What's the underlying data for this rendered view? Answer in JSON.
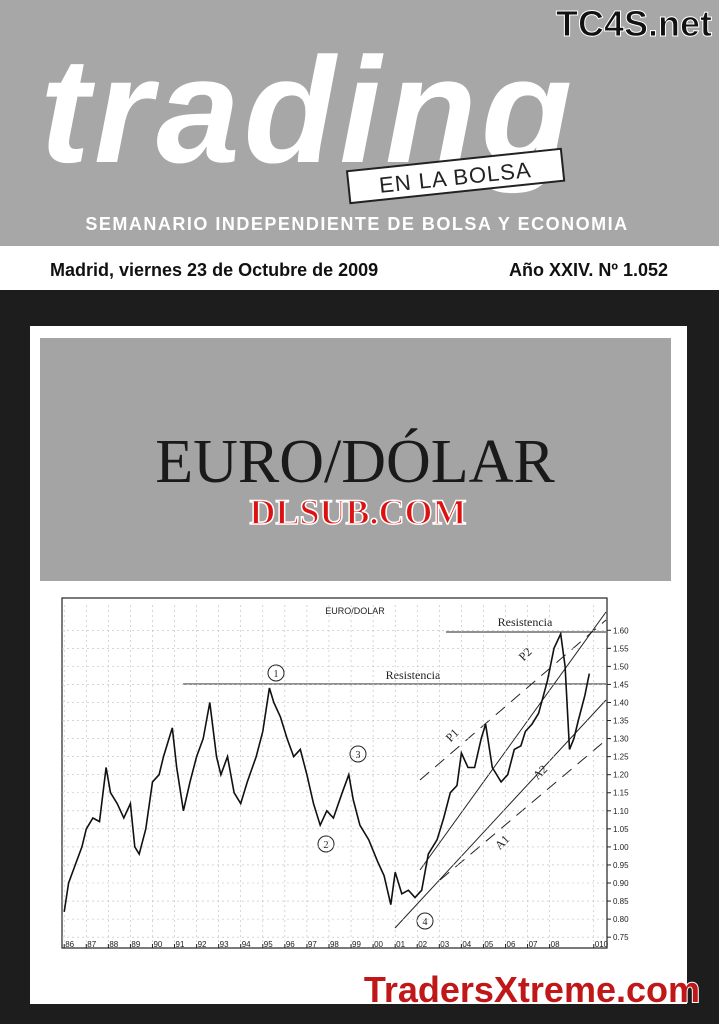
{
  "header": {
    "watermark": "TC4S.net",
    "title": "trading",
    "subtitle": "EN LA BOLSA",
    "tagline": "SEMANARIO INDEPENDIENTE DE BOLSA Y ECONOMIA"
  },
  "dateline": {
    "date": "Madrid, viernes 23 de Octubre de 2009",
    "issue": "Año XXIV. Nº 1.052"
  },
  "headline": {
    "title": "EURO/DÓLAR",
    "watermark": "DLSUB.COM"
  },
  "chart_data": {
    "type": "line",
    "title": "EURO/DOLAR",
    "color": "#111111",
    "x": [
      1986.0,
      1986.2,
      1986.5,
      1986.8,
      1987.0,
      1987.3,
      1987.6,
      1987.9,
      1988.1,
      1988.4,
      1988.7,
      1989.0,
      1989.2,
      1989.4,
      1989.7,
      1990.0,
      1990.3,
      1990.5,
      1990.9,
      1991.1,
      1991.4,
      1991.7,
      1992.0,
      1992.3,
      1992.6,
      1992.9,
      1993.1,
      1993.4,
      1993.7,
      1994.0,
      1994.3,
      1994.7,
      1995.0,
      1995.3,
      1995.5,
      1995.8,
      1996.1,
      1996.4,
      1996.7,
      1997.0,
      1997.3,
      1997.6,
      1997.9,
      1998.2,
      1998.6,
      1998.9,
      1999.1,
      1999.4,
      1999.8,
      2000.2,
      2000.5,
      2000.8,
      2001.0,
      2001.3,
      2001.6,
      2001.9,
      2002.2,
      2002.5,
      2002.9,
      2003.2,
      2003.5,
      2003.8,
      2004.0,
      2004.3,
      2004.6,
      2004.9,
      2005.1,
      2005.4,
      2005.8,
      2006.1,
      2006.4,
      2006.7,
      2006.9,
      2007.2,
      2007.5,
      2007.9,
      2008.2,
      2008.5,
      2008.7,
      2008.9,
      2009.1,
      2009.3,
      2009.6,
      2009.8
    ],
    "values": [
      0.82,
      0.9,
      0.95,
      1.0,
      1.05,
      1.08,
      1.07,
      1.22,
      1.15,
      1.12,
      1.08,
      1.12,
      1.0,
      0.98,
      1.05,
      1.18,
      1.2,
      1.25,
      1.33,
      1.22,
      1.1,
      1.18,
      1.25,
      1.3,
      1.4,
      1.25,
      1.2,
      1.25,
      1.15,
      1.12,
      1.18,
      1.25,
      1.32,
      1.44,
      1.4,
      1.36,
      1.3,
      1.25,
      1.27,
      1.2,
      1.12,
      1.06,
      1.1,
      1.08,
      1.15,
      1.2,
      1.13,
      1.06,
      1.02,
      0.96,
      0.92,
      0.84,
      0.93,
      0.87,
      0.88,
      0.86,
      0.88,
      0.98,
      1.02,
      1.08,
      1.15,
      1.17,
      1.26,
      1.22,
      1.22,
      1.3,
      1.34,
      1.22,
      1.18,
      1.2,
      1.27,
      1.28,
      1.32,
      1.34,
      1.37,
      1.46,
      1.55,
      1.59,
      1.5,
      1.27,
      1.3,
      1.35,
      1.42,
      1.48
    ],
    "xlim": [
      1985.9,
      2010.6
    ],
    "ylim": [
      0.72,
      1.67
    ],
    "xticks": [
      {
        "value": 1986,
        "label": "86"
      },
      {
        "value": 1987,
        "label": "87"
      },
      {
        "value": 1988,
        "label": "88"
      },
      {
        "value": 1989,
        "label": "89"
      },
      {
        "value": 1990,
        "label": "90"
      },
      {
        "value": 1991,
        "label": "91"
      },
      {
        "value": 1992,
        "label": "92"
      },
      {
        "value": 1993,
        "label": "93"
      },
      {
        "value": 1994,
        "label": "94"
      },
      {
        "value": 1995,
        "label": "95"
      },
      {
        "value": 1996,
        "label": "96"
      },
      {
        "value": 1997,
        "label": "97"
      },
      {
        "value": 1998,
        "label": "98"
      },
      {
        "value": 1999,
        "label": "99"
      },
      {
        "value": 2000,
        "label": "00"
      },
      {
        "value": 2001,
        "label": "01"
      },
      {
        "value": 2002,
        "label": "02"
      },
      {
        "value": 2003,
        "label": "03"
      },
      {
        "value": 2004,
        "label": "04"
      },
      {
        "value": 2005,
        "label": "05"
      },
      {
        "value": 2006,
        "label": "06"
      },
      {
        "value": 2007,
        "label": "07"
      },
      {
        "value": 2008,
        "label": "08"
      },
      {
        "value": 2010,
        "label": "010"
      }
    ],
    "yticks": [
      0.75,
      {
        "value": 0.8,
        "label": "0.80"
      },
      0.85,
      {
        "value": 0.9,
        "label": "0.90"
      },
      0.95,
      {
        "value": 1,
        "label": "1.00"
      },
      1.05,
      {
        "value": 1.1,
        "label": "1.10"
      },
      1.15,
      {
        "value": 1.2,
        "label": "1.20"
      },
      1.25,
      {
        "value": 1.3,
        "label": "1.30"
      },
      1.35,
      {
        "value": 1.4,
        "label": "1.40"
      },
      1.45,
      {
        "value": 1.5,
        "label": "1.50"
      },
      1.55,
      {
        "value": 1.6,
        "label": "1.60"
      }
    ],
    "grid": true,
    "annotations": {
      "resistance_1": "Resistencia",
      "resistance_2": "Resistencia",
      "point_1": "1",
      "point_2": "2",
      "point_3": "3",
      "point_4": "4",
      "p1": "P1",
      "p2": "P2",
      "a1": "A1",
      "a2": "A2"
    }
  },
  "footer": {
    "watermark": "TradersXtreme.com"
  }
}
